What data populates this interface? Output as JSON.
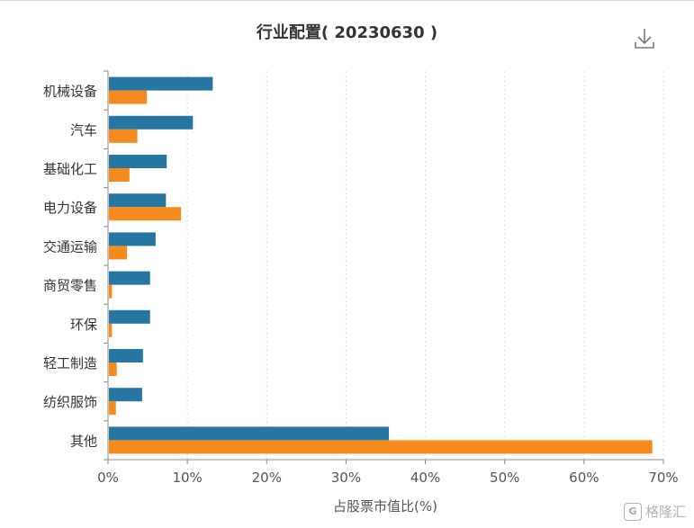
{
  "header": {
    "title": "行业配置( 20230630 )",
    "download_icon": "download-icon"
  },
  "watermark": {
    "text": "格隆汇",
    "logo_text": "G"
  },
  "chart_data": {
    "type": "bar",
    "orientation": "horizontal",
    "title": "行业配置( 20230630 )",
    "xlabel": "占股票市值比(%)",
    "ylabel": "",
    "xlim": [
      0,
      70
    ],
    "xticks": [
      "0%",
      "10%",
      "20%",
      "30%",
      "40%",
      "50%",
      "60%",
      "70%"
    ],
    "xtick_values": [
      0,
      10,
      20,
      30,
      40,
      50,
      60,
      70
    ],
    "grid": "vertical dotted",
    "categories": [
      "机械设备",
      "汽车",
      "基础化工",
      "电力设备",
      "交通运输",
      "商贸零售",
      "环保",
      "轻工制造",
      "纺织服饰",
      "其他"
    ],
    "series": [
      {
        "color": "#2576a3",
        "values": [
          13.2,
          10.7,
          7.4,
          7.3,
          6.0,
          5.3,
          5.3,
          4.4,
          4.3,
          35.4
        ]
      },
      {
        "color": "#f58a1f",
        "values": [
          4.9,
          3.7,
          2.7,
          9.2,
          2.4,
          0.5,
          0.5,
          1.1,
          1.0,
          68.6
        ]
      }
    ]
  }
}
